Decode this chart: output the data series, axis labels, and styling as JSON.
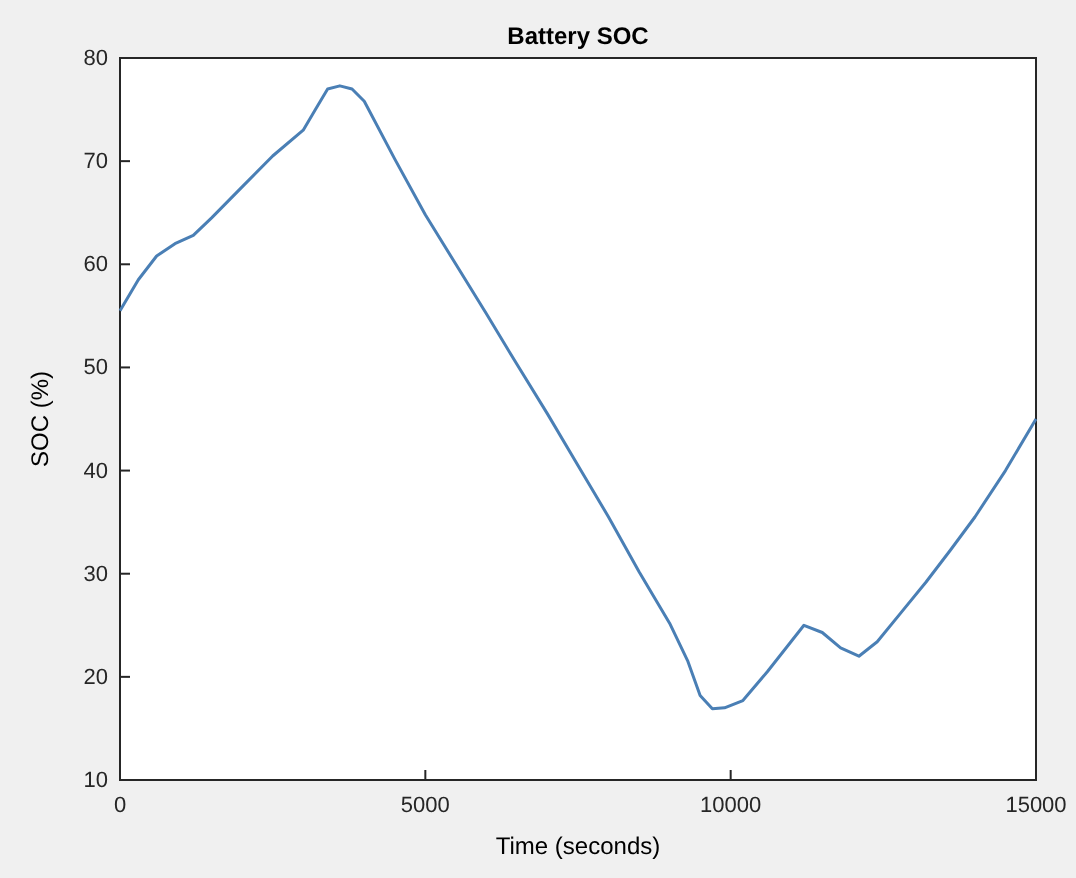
{
  "chart_data": {
    "type": "line",
    "title": "Battery SOC",
    "xlabel": "Time (seconds)",
    "ylabel": "SOC (%)",
    "xlim": [
      0,
      15000
    ],
    "ylim": [
      10,
      80
    ],
    "xticks": [
      0,
      5000,
      10000,
      15000
    ],
    "yticks": [
      10,
      20,
      30,
      40,
      50,
      60,
      70,
      80
    ],
    "grid": false,
    "series": [
      {
        "color": "#4a7fb5",
        "x": [
          0,
          300,
          600,
          900,
          1200,
          1500,
          2000,
          2500,
          3000,
          3200,
          3400,
          3600,
          3800,
          4000,
          4500,
          5000,
          5500,
          6000,
          6500,
          7000,
          7500,
          8000,
          8500,
          9000,
          9300,
          9500,
          9700,
          9900,
          10200,
          10600,
          11000,
          11200,
          11500,
          11800,
          12100,
          12400,
          12800,
          13200,
          13600,
          14000,
          14500,
          15000
        ],
        "values": [
          55.5,
          58.5,
          60.8,
          62,
          62.8,
          64.5,
          67.5,
          70.5,
          73,
          75,
          77,
          77.3,
          77,
          75.8,
          70.2,
          64.8,
          60,
          55.2,
          50.3,
          45.5,
          40.5,
          35.5,
          30.2,
          25.2,
          21.5,
          18.2,
          16.9,
          17,
          17.7,
          20.5,
          23.5,
          25,
          24.3,
          22.8,
          22,
          23.4,
          26.3,
          29.2,
          32.3,
          35.5,
          40,
          45
        ]
      }
    ]
  }
}
